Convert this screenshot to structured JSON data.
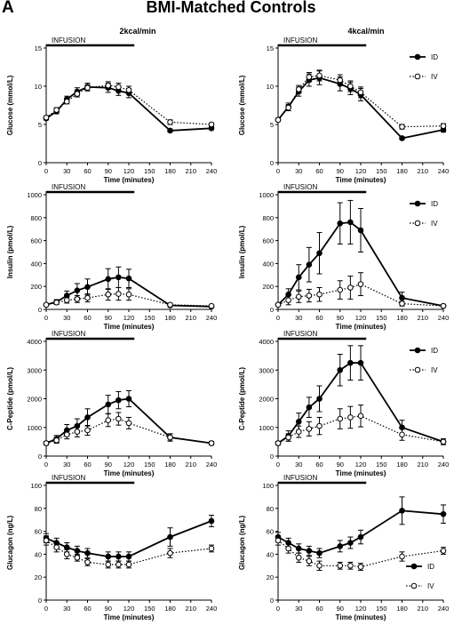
{
  "figure": {
    "panel_letter": "A",
    "title": "BMI-Matched Controls",
    "columns": [
      "2kcal/min",
      "4kcal/min"
    ],
    "infusion_label": "INFUSION",
    "xlabel": "Time (minutes)"
  },
  "chart_data": [
    {
      "type": "line",
      "title": "2kcal/min",
      "row": 0,
      "col": 0,
      "xlabel": "Time (minutes)",
      "ylabel": "Glucose (mmol/L)",
      "xlim": [
        0,
        240
      ],
      "xticks": [
        0,
        30,
        60,
        90,
        120,
        150,
        180,
        210,
        240
      ],
      "ylim": [
        0,
        15
      ],
      "yticks": [
        0,
        5,
        10,
        15
      ],
      "legend": null,
      "series": [
        {
          "name": "ID",
          "style": "solid",
          "x": [
            0,
            15,
            30,
            45,
            60,
            90,
            105,
            120,
            180,
            240
          ],
          "y": [
            5.8,
            6.7,
            8.3,
            9.3,
            9.9,
            9.8,
            9.4,
            9.1,
            4.2,
            4.5
          ],
          "err": [
            0.2,
            0.3,
            0.4,
            0.5,
            0.5,
            0.6,
            0.6,
            0.6,
            0.2,
            0.2
          ]
        },
        {
          "name": "IV",
          "style": "dotted",
          "x": [
            0,
            15,
            30,
            45,
            60,
            90,
            105,
            120,
            180,
            240
          ],
          "y": [
            5.9,
            6.9,
            8.0,
            9.0,
            9.8,
            10.1,
            9.9,
            9.5,
            5.3,
            5.0
          ],
          "err": [
            0.2,
            0.3,
            0.3,
            0.4,
            0.4,
            0.5,
            0.5,
            0.5,
            0.3,
            0.2
          ]
        }
      ]
    },
    {
      "type": "line",
      "title": "4kcal/min",
      "row": 0,
      "col": 1,
      "xlabel": "Time (minutes)",
      "ylabel": "Glucose (mmol/L)",
      "xlim": [
        0,
        240
      ],
      "xticks": [
        0,
        30,
        60,
        90,
        120,
        150,
        180,
        210,
        240
      ],
      "ylim": [
        0,
        15
      ],
      "yticks": [
        0,
        5,
        10,
        15
      ],
      "legend": "right",
      "series": [
        {
          "name": "ID",
          "style": "solid",
          "x": [
            0,
            15,
            30,
            45,
            60,
            90,
            105,
            120,
            180,
            240
          ],
          "y": [
            5.6,
            7.3,
            9.3,
            10.8,
            11.1,
            10.3,
            9.7,
            8.9,
            3.2,
            4.3
          ],
          "err": [
            0.2,
            0.5,
            0.6,
            0.8,
            0.9,
            0.9,
            0.8,
            0.8,
            0.2,
            0.3
          ]
        },
        {
          "name": "IV",
          "style": "dotted",
          "x": [
            0,
            15,
            30,
            45,
            60,
            90,
            105,
            120,
            180,
            240
          ],
          "y": [
            5.6,
            7.2,
            9.6,
            11.2,
            11.4,
            10.8,
            10.0,
            9.2,
            4.7,
            4.8
          ],
          "err": [
            0.2,
            0.4,
            0.5,
            0.6,
            0.7,
            0.7,
            0.7,
            0.7,
            0.3,
            0.3
          ]
        }
      ]
    },
    {
      "type": "line",
      "row": 1,
      "col": 0,
      "xlabel": "Time (minutes)",
      "ylabel": "Insulin (pmol/L)",
      "xlim": [
        0,
        240
      ],
      "xticks": [
        0,
        30,
        60,
        90,
        120,
        150,
        180,
        210,
        240
      ],
      "ylim": [
        0,
        1000
      ],
      "yticks": [
        0,
        200,
        400,
        600,
        800,
        1000
      ],
      "legend": null,
      "series": [
        {
          "name": "ID",
          "style": "solid",
          "x": [
            0,
            15,
            30,
            45,
            60,
            90,
            105,
            120,
            180,
            240
          ],
          "y": [
            40,
            65,
            120,
            165,
            195,
            265,
            280,
            270,
            35,
            25
          ],
          "err": [
            10,
            20,
            40,
            60,
            70,
            90,
            90,
            80,
            10,
            8
          ]
        },
        {
          "name": "IV",
          "style": "dotted",
          "x": [
            0,
            15,
            30,
            45,
            60,
            90,
            105,
            120,
            180,
            240
          ],
          "y": [
            40,
            60,
            80,
            90,
            100,
            130,
            135,
            130,
            40,
            30
          ],
          "err": [
            10,
            15,
            25,
            30,
            35,
            50,
            55,
            50,
            12,
            8
          ]
        }
      ]
    },
    {
      "type": "line",
      "row": 1,
      "col": 1,
      "xlabel": "Time (minutes)",
      "ylabel": "Insulin (pmol/L)",
      "xlim": [
        0,
        240
      ],
      "xticks": [
        0,
        30,
        60,
        90,
        120,
        150,
        180,
        210,
        240
      ],
      "ylim": [
        0,
        1000
      ],
      "yticks": [
        0,
        200,
        400,
        600,
        800,
        1000
      ],
      "legend": "right",
      "series": [
        {
          "name": "ID",
          "style": "solid",
          "x": [
            0,
            15,
            30,
            45,
            60,
            90,
            105,
            120,
            180,
            240
          ],
          "y": [
            40,
            130,
            280,
            390,
            490,
            750,
            760,
            690,
            100,
            30
          ],
          "err": [
            10,
            50,
            110,
            150,
            180,
            180,
            190,
            190,
            50,
            10
          ]
        },
        {
          "name": "IV",
          "style": "dotted",
          "x": [
            0,
            15,
            30,
            45,
            60,
            90,
            105,
            120,
            180,
            240
          ],
          "y": [
            40,
            80,
            110,
            120,
            130,
            170,
            190,
            220,
            50,
            30
          ],
          "err": [
            10,
            40,
            50,
            55,
            60,
            80,
            100,
            100,
            20,
            10
          ]
        }
      ]
    },
    {
      "type": "line",
      "row": 2,
      "col": 0,
      "xlabel": "Time (minutes)",
      "ylabel": "C-Peptide (pmol/L)",
      "xlim": [
        0,
        240
      ],
      "xticks": [
        0,
        30,
        60,
        90,
        120,
        150,
        180,
        210,
        240
      ],
      "ylim": [
        0,
        4000
      ],
      "yticks": [
        0,
        1000,
        2000,
        3000,
        4000
      ],
      "legend": null,
      "series": [
        {
          "name": "ID",
          "style": "solid",
          "x": [
            0,
            15,
            30,
            45,
            60,
            90,
            105,
            120,
            180,
            240
          ],
          "y": [
            450,
            600,
            900,
            1050,
            1350,
            1800,
            1950,
            2000,
            650,
            450
          ],
          "err": [
            60,
            120,
            200,
            250,
            300,
            320,
            300,
            280,
            120,
            60
          ]
        },
        {
          "name": "IV",
          "style": "dotted",
          "x": [
            0,
            15,
            30,
            45,
            60,
            90,
            105,
            120,
            180,
            240
          ],
          "y": [
            450,
            550,
            750,
            850,
            900,
            1250,
            1300,
            1150,
            650,
            450
          ],
          "err": [
            60,
            100,
            150,
            180,
            170,
            220,
            220,
            200,
            130,
            60
          ]
        }
      ]
    },
    {
      "type": "line",
      "row": 2,
      "col": 1,
      "xlabel": "Time (minutes)",
      "ylabel": "C-Peptide (pmol/L)",
      "xlim": [
        0,
        240
      ],
      "xticks": [
        0,
        30,
        60,
        90,
        120,
        150,
        180,
        210,
        240
      ],
      "ylim": [
        0,
        4000
      ],
      "yticks": [
        0,
        1000,
        2000,
        3000,
        4000
      ],
      "legend": "right",
      "series": [
        {
          "name": "ID",
          "style": "solid",
          "x": [
            0,
            15,
            30,
            45,
            60,
            90,
            105,
            120,
            180,
            240
          ],
          "y": [
            450,
            700,
            1200,
            1700,
            2000,
            3000,
            3250,
            3250,
            1000,
            500
          ],
          "err": [
            60,
            180,
            300,
            350,
            450,
            550,
            600,
            600,
            250,
            100
          ]
        },
        {
          "name": "IV",
          "style": "dotted",
          "x": [
            0,
            15,
            30,
            45,
            60,
            90,
            105,
            120,
            180,
            240
          ],
          "y": [
            450,
            650,
            850,
            950,
            1050,
            1300,
            1350,
            1400,
            750,
            500
          ],
          "err": [
            60,
            130,
            200,
            250,
            300,
            350,
            380,
            380,
            200,
            100
          ]
        }
      ]
    },
    {
      "type": "line",
      "row": 3,
      "col": 0,
      "xlabel": "Time (minutes)",
      "ylabel": "Glucagon (ng/L)",
      "xlim": [
        0,
        240
      ],
      "xticks": [
        0,
        30,
        60,
        90,
        120,
        150,
        180,
        210,
        240
      ],
      "ylim": [
        0,
        100
      ],
      "yticks": [
        0,
        20,
        40,
        60,
        80,
        100
      ],
      "legend": null,
      "series": [
        {
          "name": "ID",
          "style": "solid",
          "x": [
            0,
            15,
            30,
            45,
            60,
            90,
            105,
            120,
            180,
            240
          ],
          "y": [
            54,
            50,
            46,
            43,
            41,
            38,
            38,
            38,
            55,
            69
          ],
          "err": [
            4,
            4,
            4,
            4,
            4,
            4,
            4,
            4,
            8,
            5
          ]
        },
        {
          "name": "IV",
          "style": "dotted",
          "x": [
            0,
            15,
            30,
            45,
            60,
            90,
            105,
            120,
            180,
            240
          ],
          "y": [
            52,
            46,
            40,
            37,
            33,
            31,
            31,
            31,
            41,
            45
          ],
          "err": [
            4,
            4,
            4,
            3,
            3,
            3,
            3,
            3,
            4,
            3
          ]
        }
      ]
    },
    {
      "type": "line",
      "row": 3,
      "col": 1,
      "xlabel": "Time (minutes)",
      "ylabel": "Glucagon (ng/L)",
      "xlim": [
        0,
        240
      ],
      "xticks": [
        0,
        30,
        60,
        90,
        120,
        150,
        180,
        210,
        240
      ],
      "ylim": [
        0,
        100
      ],
      "yticks": [
        0,
        20,
        40,
        60,
        80,
        100
      ],
      "legend": "bottom-right",
      "series": [
        {
          "name": "ID",
          "style": "solid",
          "x": [
            0,
            15,
            30,
            45,
            60,
            90,
            105,
            120,
            180,
            240
          ],
          "y": [
            55,
            50,
            45,
            43,
            41,
            47,
            50,
            55,
            78,
            75
          ],
          "err": [
            4,
            4,
            4,
            4,
            4,
            5,
            5,
            6,
            12,
            8
          ]
        },
        {
          "name": "IV",
          "style": "dotted",
          "x": [
            0,
            15,
            30,
            45,
            60,
            90,
            105,
            120,
            180,
            240
          ],
          "y": [
            52,
            45,
            37,
            34,
            30,
            30,
            30,
            29,
            38,
            43
          ],
          "err": [
            4,
            4,
            4,
            4,
            4,
            3,
            3,
            3,
            4,
            3
          ]
        }
      ]
    }
  ]
}
